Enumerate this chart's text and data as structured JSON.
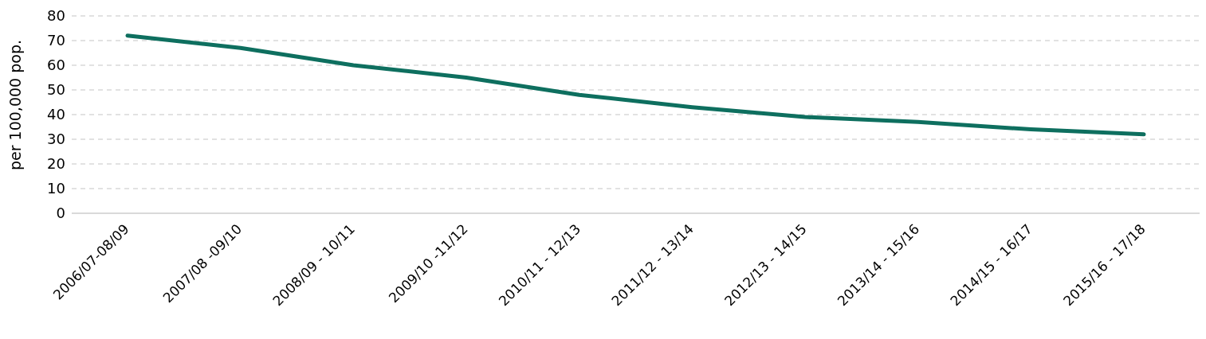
{
  "chart_data": {
    "type": "line",
    "ylabel": "per 100,000 pop.",
    "categories": [
      "2006/07-08/09",
      "2007/08 -09/10",
      "2008/09 - 10/11",
      "2009/10 -11/12",
      "2010/11 - 12/13",
      "2011/12 - 13/14",
      "2012/13 - 14/15",
      "2013/14 - 15/16",
      "2014/15 - 16/17",
      "2015/16 - 17/18"
    ],
    "series": [
      {
        "color": "#0e6f5f",
        "values": [
          72,
          67,
          60,
          55,
          48,
          43,
          39,
          37,
          34,
          32
        ]
      }
    ],
    "ylim": [
      0,
      80
    ],
    "yticks": [
      0,
      10,
      20,
      30,
      40,
      50,
      60,
      70,
      80
    ],
    "grid": "y",
    "marker": "none",
    "line_style": "solid"
  }
}
